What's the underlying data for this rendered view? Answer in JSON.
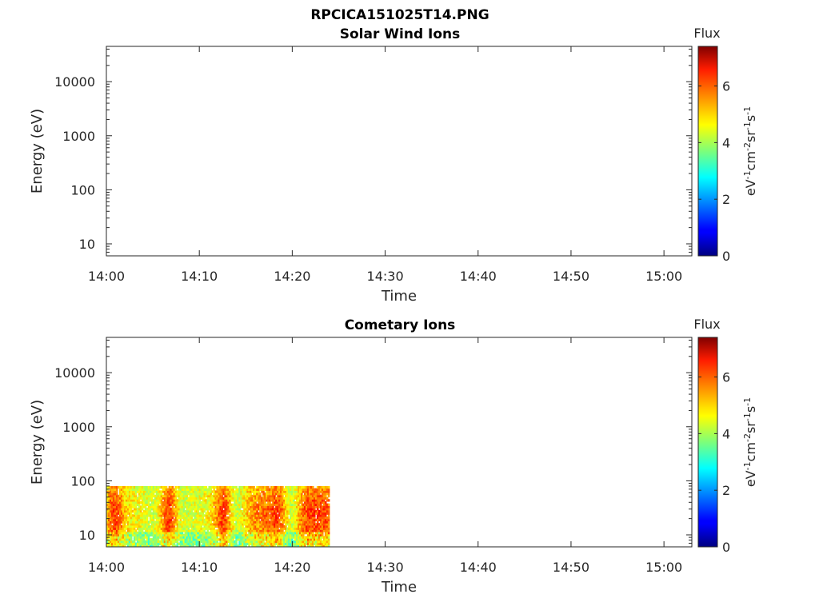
{
  "page_title": "RPCICA151025T14.PNG",
  "chart_data": [
    {
      "type": "heatmap",
      "title": "Solar Wind Ions",
      "xlabel": "Time",
      "ylabel": "Energy (eV)",
      "x_ticks": [
        "14:00",
        "14:10",
        "14:20",
        "14:30",
        "14:40",
        "14:50",
        "15:00"
      ],
      "xlim": [
        "14:00",
        "15:03"
      ],
      "y_scale": "log",
      "y_ticks": [
        10,
        100,
        1000,
        10000
      ],
      "ylim": [
        6,
        45000
      ],
      "colorbar": {
        "label": "Flux",
        "unit": "eV-1cm-2sr-1s-1",
        "ticks": [
          0,
          2,
          4,
          6
        ],
        "range": [
          0,
          7.4
        ],
        "colormap": "jet"
      },
      "data_coverage": null
    },
    {
      "type": "heatmap",
      "title": "Cometary Ions",
      "xlabel": "Time",
      "ylabel": "Energy (eV)",
      "x_ticks": [
        "14:00",
        "14:10",
        "14:20",
        "14:30",
        "14:40",
        "14:50",
        "15:00"
      ],
      "xlim": [
        "14:00",
        "15:03"
      ],
      "y_scale": "log",
      "y_ticks": [
        10,
        100,
        1000,
        10000
      ],
      "ylim": [
        6,
        45000
      ],
      "colorbar": {
        "label": "Flux",
        "unit": "eV-1cm-2sr-1s-1",
        "ticks": [
          0,
          2,
          4,
          6
        ],
        "range": [
          0,
          7.4
        ],
        "colormap": "jet"
      },
      "data_coverage": {
        "time_start": "14:00",
        "time_end": "14:24",
        "energy_min": 6,
        "energy_max": 80,
        "flux_range": [
          3,
          6.5
        ]
      }
    }
  ]
}
